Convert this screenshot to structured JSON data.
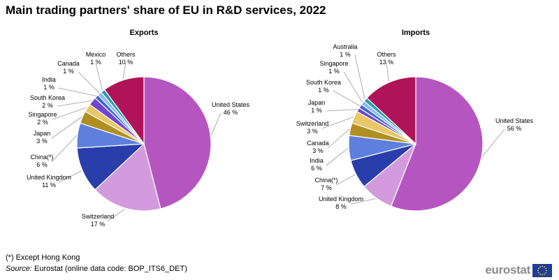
{
  "title": "Main trading partners' share of EU in R&D services, 2022",
  "footnote": "(*) Except Hong Kong",
  "source": {
    "label": "Source:",
    "text": "Eurostat (online data code: BOP_ITS6_DET)"
  },
  "logo": {
    "text": "eurostat",
    "flag_icon": "eu-flag-icon"
  },
  "chart_data": [
    {
      "type": "pie",
      "title": "Exports",
      "unit": "%",
      "slices": [
        {
          "name": "United States",
          "value": 46,
          "color": "#b556c0"
        },
        {
          "name": "Switzerland",
          "value": 17,
          "color": "#d39bde"
        },
        {
          "name": "United Kingdom",
          "value": 11,
          "color": "#2a3eab"
        },
        {
          "name": "China(*)",
          "value": 6,
          "color": "#5e7fdc"
        },
        {
          "name": "Japan",
          "value": 3,
          "color": "#b08f22"
        },
        {
          "name": "Singapore",
          "value": 2,
          "color": "#e8c766"
        },
        {
          "name": "South Korea",
          "value": 2,
          "color": "#7045d0"
        },
        {
          "name": "India",
          "value": 1,
          "color": "#3a68d8"
        },
        {
          "name": "Canada",
          "value": 1,
          "color": "#8fb8f0"
        },
        {
          "name": "Mexico",
          "value": 1,
          "color": "#2b9fb0"
        },
        {
          "name": "Others",
          "value": 10,
          "color": "#b01458"
        }
      ]
    },
    {
      "type": "pie",
      "title": "Imports",
      "unit": "%",
      "slices": [
        {
          "name": "United States",
          "value": 56,
          "color": "#b556c0"
        },
        {
          "name": "United Kingdom",
          "value": 8,
          "color": "#d39bde"
        },
        {
          "name": "China(*)",
          "value": 7,
          "color": "#2a3eab"
        },
        {
          "name": "India",
          "value": 6,
          "color": "#5e7fdc"
        },
        {
          "name": "Canada",
          "value": 3,
          "color": "#b08f22"
        },
        {
          "name": "Switzerland",
          "value": 3,
          "color": "#e8c766"
        },
        {
          "name": "Japan",
          "value": 1,
          "color": "#7045d0"
        },
        {
          "name": "South Korea",
          "value": 1,
          "color": "#3a68d8"
        },
        {
          "name": "Singapore",
          "value": 1,
          "color": "#8fb8f0"
        },
        {
          "name": "Australia",
          "value": 1,
          "color": "#2b9fb0"
        },
        {
          "name": "Others",
          "value": 13,
          "color": "#b01458"
        }
      ]
    }
  ]
}
